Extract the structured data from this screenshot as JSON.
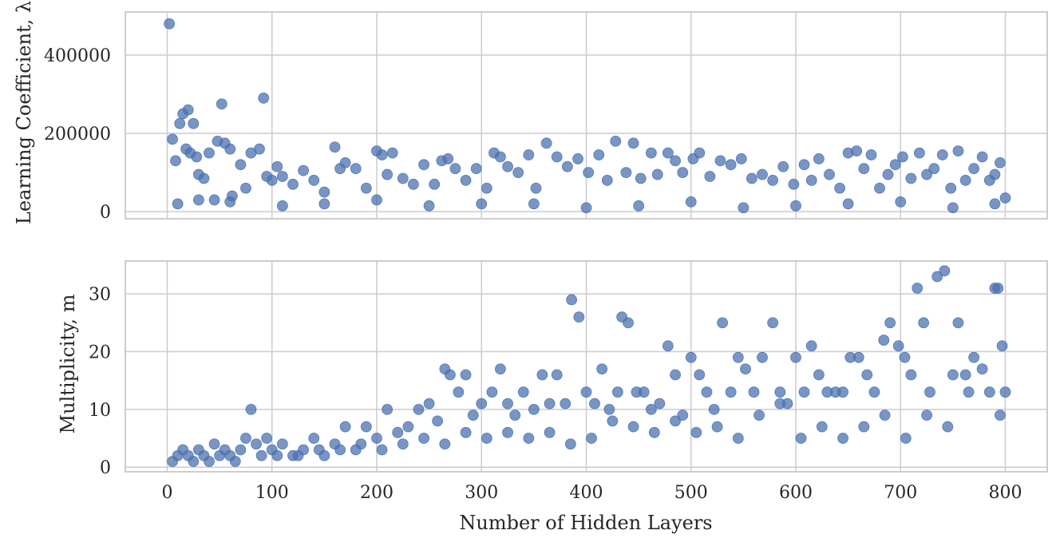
{
  "chart_data": [
    {
      "type": "scatter",
      "panel": "top",
      "ylabel": "Learning Coefficient, λ",
      "xlabel": "",
      "xlim": [
        -40,
        840
      ],
      "ylim": [
        -18000,
        510000
      ],
      "xticks": [
        0,
        100,
        200,
        300,
        400,
        500,
        600,
        700,
        800
      ],
      "yticks": [
        0,
        200000,
        400000
      ],
      "ytick_labels": [
        "0",
        "200000",
        "400000"
      ],
      "grid": true,
      "marker_color": "#4c72b0",
      "series": [
        {
          "x": [
            2,
            5,
            8,
            12,
            15,
            18,
            20,
            22,
            25,
            28,
            30,
            35,
            40,
            45,
            48,
            52,
            55,
            60,
            62,
            70,
            75,
            80,
            88,
            92,
            95,
            100,
            105,
            110,
            120,
            130,
            140,
            150,
            160,
            165,
            170,
            180,
            190,
            200,
            205,
            210,
            215,
            225,
            235,
            245,
            255,
            262,
            268,
            275,
            285,
            295,
            305,
            312,
            318,
            325,
            335,
            345,
            352,
            362,
            372,
            382,
            392,
            402,
            412,
            420,
            428,
            438,
            445,
            452,
            462,
            468,
            478,
            485,
            492,
            502,
            508,
            518,
            528,
            538,
            548,
            558,
            568,
            578,
            588,
            598,
            608,
            615,
            622,
            632,
            642,
            650,
            658,
            665,
            672,
            680,
            688,
            695,
            702,
            710,
            718,
            725,
            732,
            740,
            748,
            755,
            762,
            770,
            778,
            785,
            790,
            795,
            800,
            10,
            30,
            60,
            110,
            150,
            200,
            250,
            300,
            350,
            400,
            450,
            500,
            550,
            600,
            650,
            700,
            750,
            790
          ],
          "y": [
            480000,
            185000,
            130000,
            225000,
            250000,
            160000,
            260000,
            150000,
            225000,
            140000,
            95000,
            85000,
            150000,
            30000,
            180000,
            275000,
            175000,
            160000,
            40000,
            120000,
            60000,
            150000,
            160000,
            290000,
            90000,
            80000,
            115000,
            90000,
            70000,
            105000,
            80000,
            50000,
            165000,
            110000,
            125000,
            110000,
            60000,
            155000,
            145000,
            95000,
            150000,
            85000,
            70000,
            120000,
            70000,
            130000,
            135000,
            110000,
            80000,
            110000,
            60000,
            150000,
            140000,
            115000,
            100000,
            145000,
            60000,
            175000,
            140000,
            115000,
            135000,
            100000,
            145000,
            80000,
            180000,
            100000,
            175000,
            85000,
            150000,
            95000,
            150000,
            130000,
            100000,
            135000,
            150000,
            90000,
            130000,
            120000,
            135000,
            85000,
            95000,
            80000,
            115000,
            70000,
            120000,
            80000,
            135000,
            95000,
            60000,
            150000,
            155000,
            110000,
            145000,
            60000,
            95000,
            120000,
            140000,
            85000,
            150000,
            95000,
            110000,
            145000,
            60000,
            155000,
            80000,
            110000,
            140000,
            80000,
            95000,
            125000,
            35000,
            20000,
            30000,
            25000,
            15000,
            20000,
            30000,
            15000,
            20000,
            20000,
            10000,
            15000,
            25000,
            10000,
            15000,
            20000,
            25000,
            10000,
            20000
          ]
        }
      ]
    },
    {
      "type": "scatter",
      "panel": "bottom",
      "ylabel": "Multiplicity, m",
      "xlabel": "Number of Hidden Layers",
      "xlim": [
        -40,
        840
      ],
      "ylim": [
        -0.8,
        35.7
      ],
      "xticks": [
        0,
        100,
        200,
        300,
        400,
        500,
        600,
        700,
        800
      ],
      "xtick_labels": [
        "0",
        "100",
        "200",
        "300",
        "400",
        "500",
        "600",
        "700",
        "800"
      ],
      "yticks": [
        0,
        10,
        20,
        30
      ],
      "ytick_labels": [
        "0",
        "10",
        "20",
        "30"
      ],
      "grid": true,
      "marker_color": "#4c72b0",
      "series": [
        {
          "x": [
            5,
            10,
            15,
            20,
            25,
            30,
            35,
            40,
            45,
            50,
            55,
            60,
            65,
            70,
            75,
            80,
            85,
            90,
            95,
            100,
            110,
            120,
            130,
            140,
            150,
            160,
            170,
            180,
            190,
            200,
            210,
            220,
            230,
            240,
            250,
            258,
            265,
            270,
            278,
            285,
            292,
            300,
            310,
            318,
            325,
            332,
            340,
            350,
            358,
            365,
            372,
            380,
            386,
            393,
            400,
            408,
            415,
            422,
            430,
            434,
            440,
            448,
            455,
            462,
            470,
            478,
            485,
            492,
            500,
            508,
            515,
            522,
            530,
            538,
            545,
            552,
            560,
            568,
            578,
            585,
            592,
            600,
            608,
            615,
            622,
            630,
            638,
            645,
            652,
            660,
            668,
            675,
            684,
            690,
            698,
            704,
            710,
            716,
            722,
            728,
            735,
            742,
            750,
            755,
            762,
            770,
            778,
            785,
            790,
            793,
            797,
            800,
            795,
            765,
            745,
            725,
            705,
            685,
            665,
            645,
            625,
            605,
            585,
            565,
            545,
            525,
            505,
            485,
            465,
            445,
            425,
            405,
            385,
            365,
            345,
            325,
            305,
            285,
            265,
            245,
            225,
            205,
            185,
            165,
            145,
            125,
            105
          ],
          "y": [
            1,
            2,
            3,
            2,
            1,
            3,
            2,
            1,
            4,
            2,
            3,
            2,
            1,
            3,
            5,
            10,
            4,
            2,
            5,
            3,
            4,
            2,
            3,
            5,
            2,
            4,
            7,
            3,
            7,
            5,
            10,
            6,
            7,
            10,
            11,
            8,
            17,
            16,
            13,
            16,
            9,
            11,
            13,
            17,
            11,
            9,
            13,
            10,
            16,
            11,
            16,
            11,
            29,
            26,
            13,
            11,
            17,
            10,
            13,
            26,
            25,
            13,
            13,
            10,
            11,
            21,
            16,
            9,
            19,
            16,
            13,
            10,
            25,
            13,
            19,
            17,
            13,
            19,
            25,
            13,
            11,
            19,
            13,
            21,
            16,
            13,
            13,
            13,
            19,
            19,
            16,
            13,
            22,
            25,
            21,
            19,
            16,
            31,
            25,
            13,
            33,
            34,
            16,
            25,
            16,
            19,
            17,
            13,
            31,
            31,
            21,
            13,
            9,
            13,
            7,
            9,
            5,
            9,
            7,
            5,
            7,
            5,
            11,
            9,
            5,
            7,
            6,
            8,
            6,
            7,
            8,
            5,
            4,
            6,
            5,
            6,
            5,
            6,
            4,
            5,
            4,
            3,
            4,
            3,
            3,
            2,
            2
          ]
        }
      ]
    }
  ]
}
